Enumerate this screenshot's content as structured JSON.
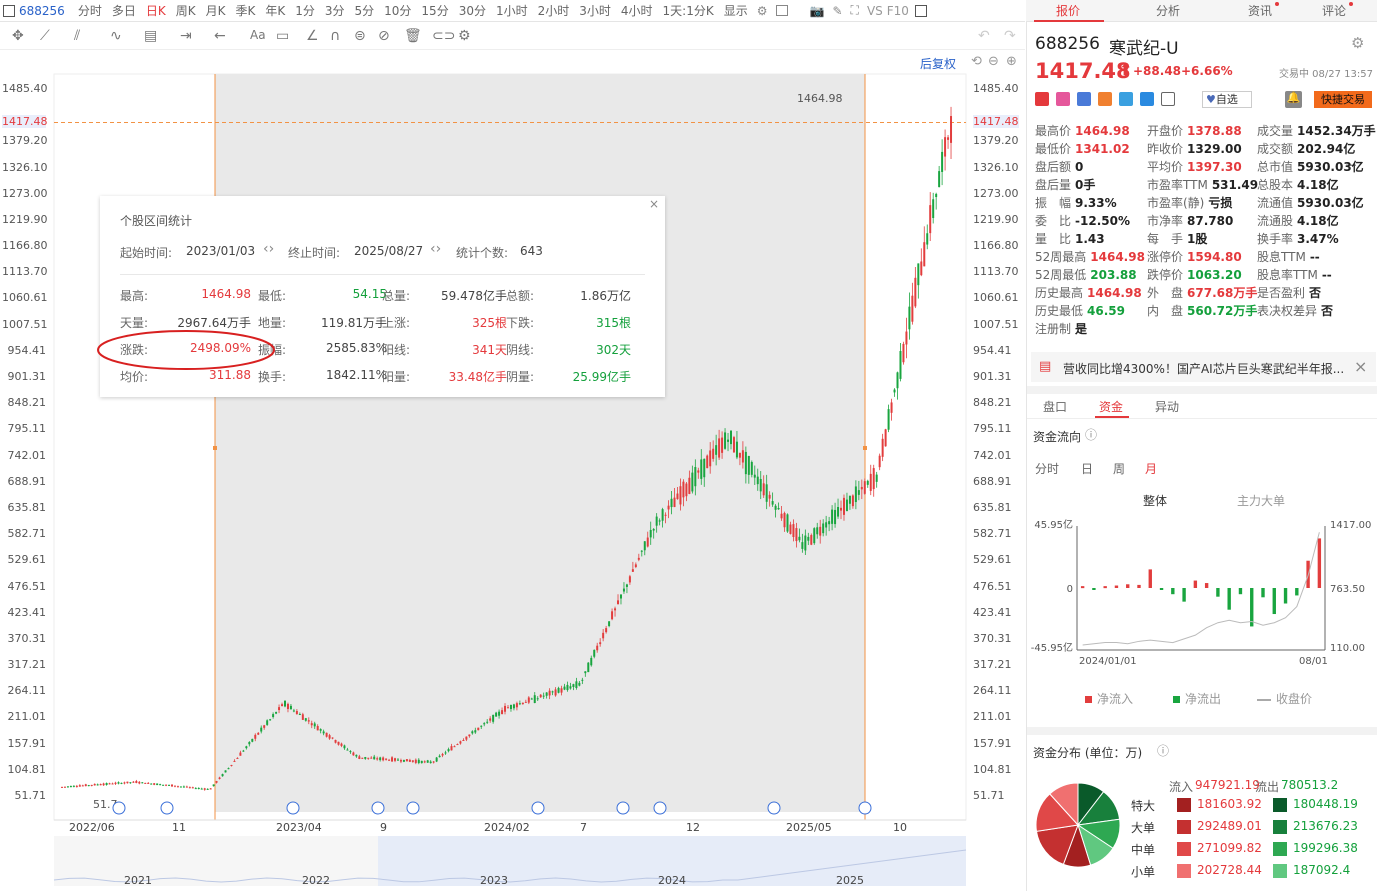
{
  "topbar": {
    "code": "688256",
    "timeframes": [
      "分时",
      "多日",
      "日K",
      "周K",
      "月K",
      "季K",
      "年K",
      "1分",
      "3分",
      "5分",
      "10分",
      "15分",
      "30分",
      "1小时",
      "2小时",
      "3小时",
      "4小时",
      "1天:1分K",
      "显示"
    ],
    "active_timeframe": "日K",
    "vs": "VS",
    "f10": "F10"
  },
  "right_tabs": [
    {
      "label": "报价",
      "active": true,
      "dot": false
    },
    {
      "label": "分析",
      "active": false,
      "dot": false
    },
    {
      "label": "资讯",
      "active": false,
      "dot": true
    },
    {
      "label": "评论",
      "active": false,
      "dot": true
    }
  ],
  "quote": {
    "code": "688256",
    "name": "寒武纪-U",
    "price": "1417.48",
    "change": "+88.48",
    "pct": "+6.66%",
    "status": "交易中 08/27 13:57",
    "watch_label": "自选",
    "quick_trade": "快捷交易",
    "fields": [
      [
        [
          "最高价",
          "1464.98",
          "red"
        ],
        [
          "开盘价",
          "1378.88",
          "red"
        ],
        [
          "成交量",
          "1452.34万手",
          "dark"
        ]
      ],
      [
        [
          "最低价",
          "1341.02",
          "red"
        ],
        [
          "昨收价",
          "1329.00",
          "dark"
        ],
        [
          "成交额",
          "202.94亿",
          "dark"
        ]
      ],
      [
        [
          "盘后额",
          "0",
          "dark"
        ],
        [
          "平均价",
          "1397.30",
          "red"
        ],
        [
          "总市值",
          "5930.03亿",
          "dark"
        ]
      ],
      [
        [
          "盘后量",
          "0手",
          "dark"
        ],
        [
          "市盈率TTM",
          "531.49",
          "dark"
        ],
        [
          "总股本",
          "4.18亿",
          "dark"
        ]
      ],
      [
        [
          "振　幅",
          "9.33%",
          "dark"
        ],
        [
          "市盈率(静)",
          "亏损",
          "dark"
        ],
        [
          "流通值",
          "5930.03亿",
          "dark"
        ]
      ],
      [
        [
          "委　比",
          "-12.50%",
          "dark"
        ],
        [
          "市净率",
          "87.780",
          "dark"
        ],
        [
          "流通股",
          "4.18亿",
          "dark"
        ]
      ],
      [
        [
          "量　比",
          "1.43",
          "dark"
        ],
        [
          "每　手",
          "1股",
          "dark"
        ],
        [
          "换手率",
          "3.47%",
          "dark"
        ]
      ],
      [
        [
          "52周最高",
          "1464.98",
          "red"
        ],
        [
          "涨停价",
          "1594.80",
          "red"
        ],
        [
          "股息TTM",
          "--",
          "dark"
        ]
      ],
      [
        [
          "52周最低",
          "203.88",
          "green"
        ],
        [
          "跌停价",
          "1063.20",
          "green"
        ],
        [
          "股息率TTM",
          "--",
          "dark"
        ]
      ],
      [
        [
          "历史最高",
          "1464.98",
          "red"
        ],
        [
          "外　盘",
          "677.68万手",
          "red"
        ],
        [
          "是否盈利",
          "否",
          "dark"
        ]
      ],
      [
        [
          "历史最低",
          "46.59",
          "green"
        ],
        [
          "内　盘",
          "560.72万手",
          "green"
        ],
        [
          "表决权差异",
          "否",
          "dark"
        ]
      ],
      [
        [
          "注册制",
          "是",
          "dark"
        ]
      ]
    ],
    "news": "营收同比增4300%！国产AI芯片巨头寒武纪半年报..."
  },
  "capital": {
    "tabs": [
      "盘口",
      "资金",
      "异动"
    ],
    "active_tab": "资金",
    "flow_title": "资金流向",
    "periods": [
      "分时",
      "日",
      "周",
      "月"
    ],
    "active_period": "月",
    "subtabs": [
      "整体",
      "主力大单"
    ],
    "y_left": [
      "45.95亿",
      "0",
      "-45.95亿"
    ],
    "y_right": [
      "1417.00",
      "763.50",
      "110.00"
    ],
    "x_labels": [
      "2024/01/01",
      "08/01"
    ],
    "legend": [
      "净流入",
      "净流出",
      "收盘价"
    ],
    "bars": [
      3,
      -2,
      3,
      4,
      6,
      5,
      30,
      -3,
      -10,
      -22,
      12,
      8,
      -14,
      -35,
      -10,
      -62,
      -15,
      -42,
      -25,
      -12,
      44,
      80
    ],
    "close_line": [
      4,
      5,
      6,
      6,
      5,
      7,
      8,
      7,
      6,
      9,
      12,
      18,
      22,
      24,
      22,
      23,
      20,
      22,
      26,
      35,
      60,
      95
    ],
    "dist_title": "资金分布 (单位：万)",
    "inflow_label": "流入",
    "inflow_total": "947921.19",
    "outflow_label": "流出",
    "outflow_total": "780513.2",
    "rows": [
      {
        "label": "特大",
        "in": "181603.92",
        "out": "180448.19"
      },
      {
        "label": "大单",
        "in": "292489.01",
        "out": "213676.23"
      },
      {
        "label": "中单",
        "in": "271099.82",
        "out": "199296.38"
      },
      {
        "label": "小单",
        "in": "202728.44",
        "out": "187092.4"
      }
    ],
    "pie_colors_in": [
      "#a32020",
      "#c43030",
      "#e04848",
      "#f07070"
    ],
    "pie_colors_out": [
      "#0a5a2a",
      "#18803c",
      "#2ea852",
      "#60c880"
    ]
  },
  "chart": {
    "restore_label": "后复权",
    "y_labels": [
      "1485.40",
      "1417.48",
      "1379.20",
      "1326.10",
      "1273.00",
      "1219.90",
      "1166.80",
      "1113.70",
      "1060.61",
      "1007.51",
      "954.41",
      "901.31",
      "848.21",
      "795.11",
      "742.01",
      "688.91",
      "635.81",
      "582.71",
      "529.61",
      "476.51",
      "423.41",
      "370.31",
      "317.21",
      "264.11",
      "211.01",
      "157.91",
      "104.81",
      "51.71"
    ],
    "x_labels": [
      "2022/06",
      "11",
      "2023/04",
      "9",
      "2024/02",
      "7",
      "12",
      "2025/05",
      "10"
    ],
    "overview_years": [
      "2021",
      "2022",
      "2023",
      "2024",
      "2025"
    ],
    "high_marker": "1464.98",
    "low_marker": "51.7",
    "current_price": "1417.48"
  },
  "chart_data": {
    "type": "candlestick",
    "ylim": [
      51.71,
      1485.4
    ],
    "series": [
      {
        "name": "",
        "x": [
          "2022/06",
          "2022/11",
          "2023/01",
          "2023/04",
          "2023/09",
          "2024/02",
          "2024/07",
          "2024/09",
          "2024/12",
          "2025/02",
          "2025/05",
          "2025/07",
          "2025/08/27"
        ],
        "values": [
          70,
          80,
          65,
          240,
          130,
          120,
          230,
          280,
          600,
          780,
          560,
          700,
          1417.48
        ]
      }
    ]
  },
  "stats": {
    "title": "个股区间统计",
    "start_label": "起始时间:",
    "start": "2023/01/03",
    "end_label": "终止时间:",
    "end": "2025/08/27",
    "count_label": "统计个数:",
    "count": "643",
    "cells": [
      [
        [
          "最高:",
          "1464.98",
          "red"
        ],
        [
          "最低:",
          "54.15",
          "green"
        ],
        [
          "总量:",
          "59.478亿手",
          "dark"
        ],
        [
          "总额:",
          "1.86万亿",
          "dark"
        ]
      ],
      [
        [
          "天量:",
          "2967.64万手",
          "dark"
        ],
        [
          "地量:",
          "119.81万手",
          "dark"
        ],
        [
          "上涨:",
          "325根",
          "red"
        ],
        [
          "下跌:",
          "315根",
          "green"
        ]
      ],
      [
        [
          "涨跌:",
          "2498.09%",
          "red"
        ],
        [
          "振幅:",
          "2585.83%",
          "dark"
        ],
        [
          "阳线:",
          "341天",
          "red"
        ],
        [
          "阴线:",
          "302天",
          "green"
        ]
      ],
      [
        [
          "均价:",
          "311.88",
          "red"
        ],
        [
          "换手:",
          "1842.11%",
          "dark"
        ],
        [
          "阳量:",
          "33.48亿手",
          "red"
        ],
        [
          "阴量:",
          "25.99亿手",
          "green"
        ]
      ]
    ]
  }
}
